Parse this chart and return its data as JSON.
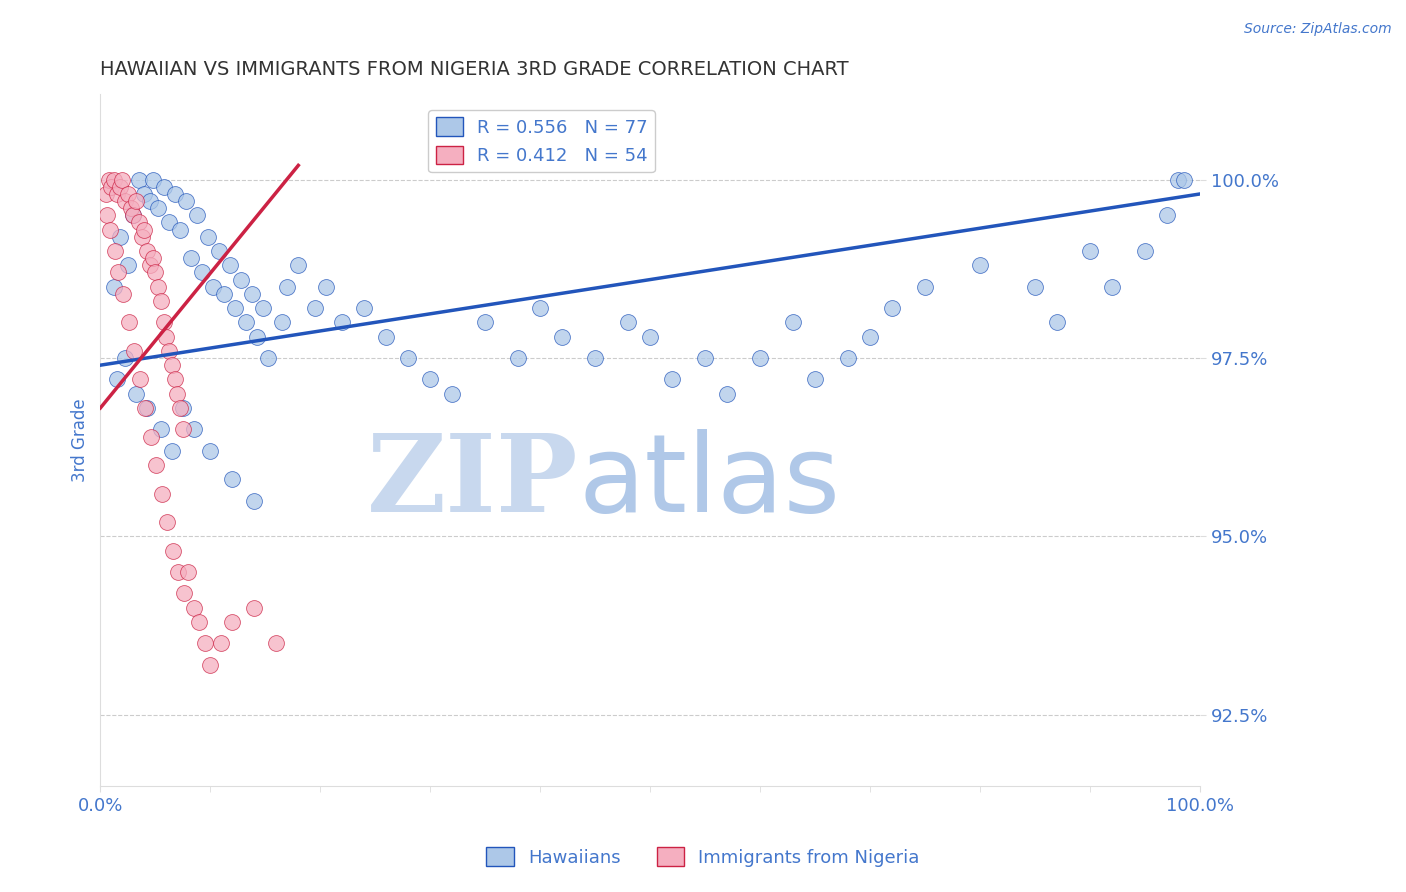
{
  "title": "HAWAIIAN VS IMMIGRANTS FROM NIGERIA 3RD GRADE CORRELATION CHART",
  "source_text": "Source: ZipAtlas.com",
  "ylabel": "3rd Grade",
  "xlim": [
    0.0,
    100.0
  ],
  "ylim": [
    91.5,
    101.2
  ],
  "yticks": [
    92.5,
    95.0,
    97.5,
    100.0
  ],
  "ytick_labels": [
    "92.5%",
    "95.0%",
    "97.5%",
    "100.0%"
  ],
  "xtick_labels": [
    "0.0%",
    "100.0%"
  ],
  "xticks": [
    0.0,
    100.0
  ],
  "blue_color": "#adc8e8",
  "pink_color": "#f5afc0",
  "blue_line_color": "#2255bb",
  "pink_line_color": "#cc2244",
  "grid_color": "#cccccc",
  "title_color": "#333333",
  "axis_label_color": "#4477cc",
  "tick_color": "#4477cc",
  "watermark_zip_color": "#c8d8ee",
  "watermark_atlas_color": "#b0c8e8",
  "legend_blue_label": "R = 0.556   N = 77",
  "legend_pink_label": "R = 0.412   N = 54",
  "blue_x": [
    1.2,
    1.8,
    2.5,
    3.0,
    3.5,
    4.0,
    4.5,
    4.8,
    5.2,
    5.8,
    6.2,
    6.8,
    7.2,
    7.8,
    8.2,
    8.8,
    9.2,
    9.8,
    10.2,
    10.8,
    11.2,
    11.8,
    12.2,
    12.8,
    13.2,
    13.8,
    14.2,
    14.8,
    15.2,
    16.5,
    17.0,
    18.0,
    19.5,
    20.5,
    22.0,
    24.0,
    26.0,
    28.0,
    30.0,
    32.0,
    35.0,
    38.0,
    40.0,
    42.0,
    45.0,
    48.0,
    50.0,
    52.0,
    55.0,
    57.0,
    60.0,
    63.0,
    65.0,
    68.0,
    70.0,
    72.0,
    75.0,
    80.0,
    85.0,
    87.0,
    90.0,
    92.0,
    95.0,
    97.0,
    98.0,
    98.5,
    1.5,
    2.2,
    3.2,
    4.2,
    5.5,
    6.5,
    7.5,
    8.5,
    10.0,
    12.0,
    14.0
  ],
  "blue_y": [
    98.5,
    99.2,
    98.8,
    99.5,
    100.0,
    99.8,
    99.7,
    100.0,
    99.6,
    99.9,
    99.4,
    99.8,
    99.3,
    99.7,
    98.9,
    99.5,
    98.7,
    99.2,
    98.5,
    99.0,
    98.4,
    98.8,
    98.2,
    98.6,
    98.0,
    98.4,
    97.8,
    98.2,
    97.5,
    98.0,
    98.5,
    98.8,
    98.2,
    98.5,
    98.0,
    98.2,
    97.8,
    97.5,
    97.2,
    97.0,
    98.0,
    97.5,
    98.2,
    97.8,
    97.5,
    98.0,
    97.8,
    97.2,
    97.5,
    97.0,
    97.5,
    98.0,
    97.2,
    97.5,
    97.8,
    98.2,
    98.5,
    98.8,
    98.5,
    98.0,
    99.0,
    98.5,
    99.0,
    99.5,
    100.0,
    100.0,
    97.2,
    97.5,
    97.0,
    96.8,
    96.5,
    96.2,
    96.8,
    96.5,
    96.2,
    95.8,
    95.5
  ],
  "pink_x": [
    0.5,
    0.8,
    1.0,
    1.2,
    1.5,
    1.8,
    2.0,
    2.2,
    2.5,
    2.8,
    3.0,
    3.2,
    3.5,
    3.8,
    4.0,
    4.2,
    4.5,
    4.8,
    5.0,
    5.2,
    5.5,
    5.8,
    6.0,
    6.2,
    6.5,
    6.8,
    7.0,
    7.2,
    7.5,
    0.6,
    0.9,
    1.3,
    1.6,
    2.1,
    2.6,
    3.1,
    3.6,
    4.1,
    4.6,
    5.1,
    5.6,
    6.1,
    6.6,
    7.1,
    7.6,
    8.0,
    8.5,
    9.0,
    9.5,
    10.0,
    11.0,
    12.0,
    14.0,
    16.0
  ],
  "pink_y": [
    99.8,
    100.0,
    99.9,
    100.0,
    99.8,
    99.9,
    100.0,
    99.7,
    99.8,
    99.6,
    99.5,
    99.7,
    99.4,
    99.2,
    99.3,
    99.0,
    98.8,
    98.9,
    98.7,
    98.5,
    98.3,
    98.0,
    97.8,
    97.6,
    97.4,
    97.2,
    97.0,
    96.8,
    96.5,
    99.5,
    99.3,
    99.0,
    98.7,
    98.4,
    98.0,
    97.6,
    97.2,
    96.8,
    96.4,
    96.0,
    95.6,
    95.2,
    94.8,
    94.5,
    94.2,
    94.5,
    94.0,
    93.8,
    93.5,
    93.2,
    93.5,
    93.8,
    94.0,
    93.5
  ]
}
